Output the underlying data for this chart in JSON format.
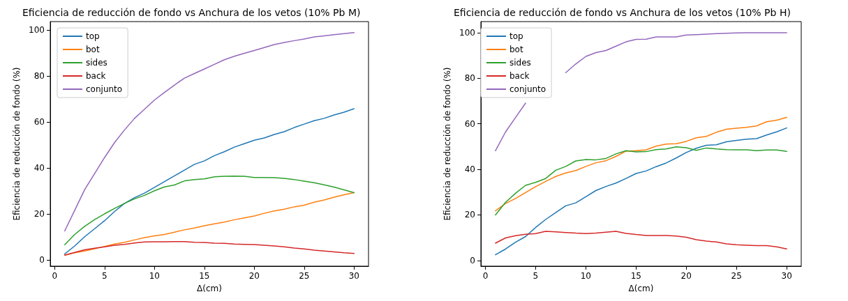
{
  "chart_data": [
    {
      "type": "line",
      "title": "Eficiencia de reducción de fondo vs Anchura de los vetos (10% Pb M)",
      "xlabel": "Δ(cm)",
      "ylabel": "Eficiencia de reducción de fondo (%)",
      "x": [
        1,
        2,
        3,
        4,
        5,
        6,
        7,
        8,
        9,
        10,
        11,
        12,
        13,
        14,
        15,
        16,
        17,
        18,
        19,
        20,
        21,
        22,
        23,
        24,
        25,
        26,
        27,
        28,
        29,
        30
      ],
      "xlim": [
        -0.45,
        31.45
      ],
      "ylim": [
        -2.8,
        103.6
      ],
      "xticks": [
        0,
        5,
        10,
        15,
        20,
        25,
        30
      ],
      "yticks": [
        0,
        20,
        40,
        60,
        80,
        100
      ],
      "legend": "top left",
      "grid": false,
      "marker": "none",
      "line_style": "solid",
      "series": [
        {
          "name": "top",
          "color": "#1f77b4",
          "values": [
            2.5,
            6,
            10,
            13.5,
            17,
            21,
            24.5,
            27,
            29,
            31.5,
            34,
            36.5,
            39,
            41.5,
            43,
            45.3,
            47,
            49,
            50.5,
            52,
            53,
            54.5,
            55.7,
            57.5,
            59,
            60.5,
            61.5,
            63,
            64.2,
            65.7
          ]
        },
        {
          "name": "bot",
          "color": "#ff7f0e",
          "values": [
            2,
            3,
            3.8,
            4.8,
            5.8,
            6.8,
            7.6,
            8.6,
            9.6,
            10.4,
            11,
            12,
            13,
            13.8,
            14.8,
            15.6,
            16.4,
            17.4,
            18.2,
            19,
            20.2,
            21.2,
            22,
            23,
            23.7,
            25,
            26,
            27.2,
            28.3,
            29.2
          ]
        },
        {
          "name": "sides",
          "color": "#2ca02c",
          "values": [
            6.5,
            11,
            14.5,
            17.5,
            20,
            22.3,
            24.5,
            26.5,
            28,
            30,
            31.7,
            32.5,
            34.3,
            34.9,
            35.2,
            36.1,
            36.3,
            36.4,
            36.3,
            35.8,
            35.8,
            35.7,
            35.4,
            34.9,
            34.2,
            33.5,
            32.6,
            31.6,
            30.4,
            29.2
          ]
        },
        {
          "name": "back",
          "color": "#d62728",
          "values": [
            2,
            3.2,
            4.3,
            5,
            5.6,
            6.3,
            6.7,
            7.3,
            7.7,
            7.8,
            7.8,
            7.9,
            7.9,
            7.6,
            7.5,
            7.2,
            7.1,
            6.8,
            6.7,
            6.6,
            6.3,
            6.0,
            5.6,
            5.1,
            4.7,
            4.2,
            3.8,
            3.4,
            3.0,
            2.7
          ]
        },
        {
          "name": "conjunto",
          "color": "#9467bd",
          "values": [
            12.5,
            21.5,
            30.5,
            37.5,
            44.5,
            51,
            56.5,
            61.5,
            65.5,
            69.5,
            72.8,
            76,
            79,
            81,
            83,
            85,
            87,
            88.5,
            89.8,
            91,
            92.3,
            93.6,
            94.5,
            95.3,
            96,
            96.9,
            97.4,
            97.9,
            98.4,
            98.8
          ]
        }
      ]
    },
    {
      "type": "line",
      "title": "Eficiencia de reducción de fondo vs Anchura de los vetos (10% Pb H)",
      "xlabel": "Δ(cm)",
      "ylabel": "Eficiencia de reducción de fondo (%)",
      "x": [
        1,
        2,
        3,
        4,
        5,
        6,
        7,
        8,
        9,
        10,
        11,
        12,
        13,
        14,
        15,
        16,
        17,
        18,
        19,
        20,
        21,
        22,
        23,
        24,
        25,
        26,
        27,
        28,
        29,
        30
      ],
      "xlim": [
        -0.45,
        31.45
      ],
      "ylim": [
        -2.5,
        104.9
      ],
      "xticks": [
        0,
        5,
        10,
        15,
        20,
        25,
        30
      ],
      "yticks": [
        0,
        20,
        40,
        60,
        80,
        100
      ],
      "legend": "top left",
      "grid": false,
      "marker": "none",
      "line_style": "solid",
      "series": [
        {
          "name": "top",
          "color": "#1f77b4",
          "values": [
            2.5,
            5,
            8,
            10.5,
            14.5,
            18,
            21,
            24,
            25.3,
            28,
            30.7,
            32.5,
            34,
            36,
            38.2,
            39.3,
            41.2,
            42.8,
            45,
            47.4,
            49.3,
            50.6,
            50.8,
            52.1,
            52.7,
            53.3,
            53.5,
            55.1,
            56.5,
            58.2
          ]
        },
        {
          "name": "bot",
          "color": "#ff7f0e",
          "values": [
            21.8,
            25,
            27.2,
            29.8,
            32.4,
            34.7,
            36.9,
            38.4,
            39.5,
            41.3,
            42.9,
            43.8,
            45.7,
            48.0,
            48.2,
            48.6,
            50.2,
            51.1,
            51.3,
            52.3,
            53.9,
            54.5,
            56.3,
            57.6,
            58.1,
            58.5,
            59.1,
            60.9,
            61.6,
            62.8
          ]
        },
        {
          "name": "sides",
          "color": "#2ca02c",
          "values": [
            20,
            25.5,
            29.5,
            33,
            34.3,
            36,
            39.6,
            41.3,
            43.7,
            44.3,
            44.2,
            44.8,
            46.8,
            48.2,
            47.7,
            47.8,
            48.7,
            49.0,
            49.9,
            49.5,
            48.4,
            49.4,
            49.0,
            48.7,
            48.6,
            48.6,
            48.2,
            48.5,
            48.5,
            47.9
          ]
        },
        {
          "name": "back",
          "color": "#d62728",
          "values": [
            7.6,
            9.9,
            10.9,
            11.5,
            11.8,
            12.8,
            12.6,
            12.3,
            12.0,
            11.8,
            12.0,
            12.4,
            12.8,
            11.9,
            11.4,
            11.0,
            11.0,
            11.0,
            10.7,
            10.2,
            9.1,
            8.5,
            8.1,
            7.3,
            6.9,
            6.7,
            6.5,
            6.5,
            6.0,
            5.1
          ]
        },
        {
          "name": "conjunto",
          "color": "#9467bd",
          "values": [
            48.2,
            56.4,
            62.8,
            69.1,
            null,
            null,
            null,
            82.5,
            86.3,
            89.6,
            91.3,
            92.2,
            94.1,
            96.0,
            97.1,
            97.2,
            98.2,
            98.2,
            98.2,
            99.0,
            99.2,
            99.4,
            99.6,
            99.8,
            99.9,
            100,
            100,
            100,
            100,
            100
          ]
        }
      ]
    }
  ]
}
